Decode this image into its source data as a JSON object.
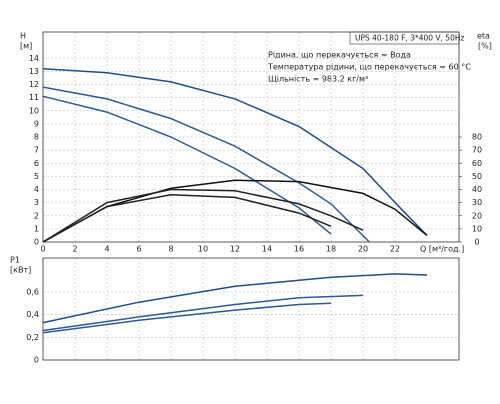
{
  "chart_data": [
    {
      "type": "line",
      "header": "UPS 40-180 F, 3*400 V, 50Hz",
      "notes": [
        "Рідина, що перекачується = Вода",
        "Температура рідини, що перекачується = 60 °C",
        "Щільність = 983.2 кг/м³"
      ],
      "y_label": "H",
      "y_unit": "[м]",
      "y2_label": "eta",
      "y2_unit": "[%]",
      "x_label": "Q [м³/год.]",
      "xlim": [
        0,
        26
      ],
      "xticks": [
        0,
        2,
        4,
        6,
        8,
        10,
        12,
        14,
        16,
        18,
        20,
        22
      ],
      "ylim": [
        0,
        16
      ],
      "yticks": [
        0,
        1,
        2,
        3,
        4,
        5,
        6,
        7,
        8,
        9,
        10,
        11,
        12,
        13,
        14
      ],
      "y2lim": [
        0,
        160
      ],
      "y2ticks": [
        0,
        10,
        20,
        30,
        40,
        50,
        60,
        70,
        80
      ],
      "grid": true,
      "series": [
        {
          "color": "#1f4e8c",
          "x": [
            0,
            4,
            8,
            12,
            16,
            20,
            22.4,
            24
          ],
          "values": [
            13.2,
            12.9,
            12.2,
            10.9,
            8.8,
            5.6,
            2.5,
            0.5
          ]
        },
        {
          "color": "#2b5a94",
          "x": [
            0,
            4,
            8,
            12,
            16,
            18,
            20.4
          ],
          "values": [
            11.8,
            10.9,
            9.4,
            7.3,
            4.5,
            2.9,
            0
          ]
        },
        {
          "color": "#2b5a94",
          "x": [
            0,
            4,
            8,
            12,
            16,
            18
          ],
          "values": [
            11.1,
            9.9,
            8.0,
            5.6,
            2.6,
            0.6
          ]
        },
        {
          "color": "#111111",
          "axis": "y2",
          "x": [
            0,
            4,
            8,
            12,
            16,
            20,
            22,
            24
          ],
          "values": [
            0,
            27,
            41,
            47,
            46,
            37,
            25,
            5
          ]
        },
        {
          "color": "#222222",
          "axis": "y2",
          "x": [
            0,
            4,
            8,
            12,
            16,
            18,
            20
          ],
          "values": [
            0,
            30,
            40,
            39,
            29,
            20,
            9
          ]
        },
        {
          "color": "#222222",
          "axis": "y2",
          "x": [
            0,
            4,
            8,
            12,
            16,
            18
          ],
          "values": [
            0,
            27,
            36,
            34,
            22,
            12
          ]
        }
      ]
    },
    {
      "type": "line",
      "y_label": "P1",
      "y_unit": "[кВт]",
      "xlim": [
        0,
        26
      ],
      "xticks": [
        0,
        2,
        4,
        6,
        8,
        10,
        12,
        14,
        16,
        18,
        20,
        22
      ],
      "ylim": [
        0,
        0.9
      ],
      "yticks": [
        0,
        {
          "value": 0.2,
          "label": "0,2"
        },
        {
          "value": 0.4,
          "label": "0,4"
        },
        {
          "value": 0.6,
          "label": "0,6"
        }
      ],
      "grid": true,
      "series": [
        {
          "color": "#1f4e8c",
          "x": [
            0,
            6,
            12,
            18,
            22,
            24
          ],
          "values": [
            0.33,
            0.51,
            0.65,
            0.73,
            0.76,
            0.75
          ]
        },
        {
          "color": "#2b5a94",
          "x": [
            0,
            6,
            12,
            16,
            20
          ],
          "values": [
            0.26,
            0.38,
            0.49,
            0.55,
            0.57
          ]
        },
        {
          "color": "#2b5a94",
          "x": [
            0,
            6,
            12,
            16,
            18
          ],
          "values": [
            0.24,
            0.35,
            0.44,
            0.49,
            0.5
          ]
        }
      ]
    }
  ]
}
